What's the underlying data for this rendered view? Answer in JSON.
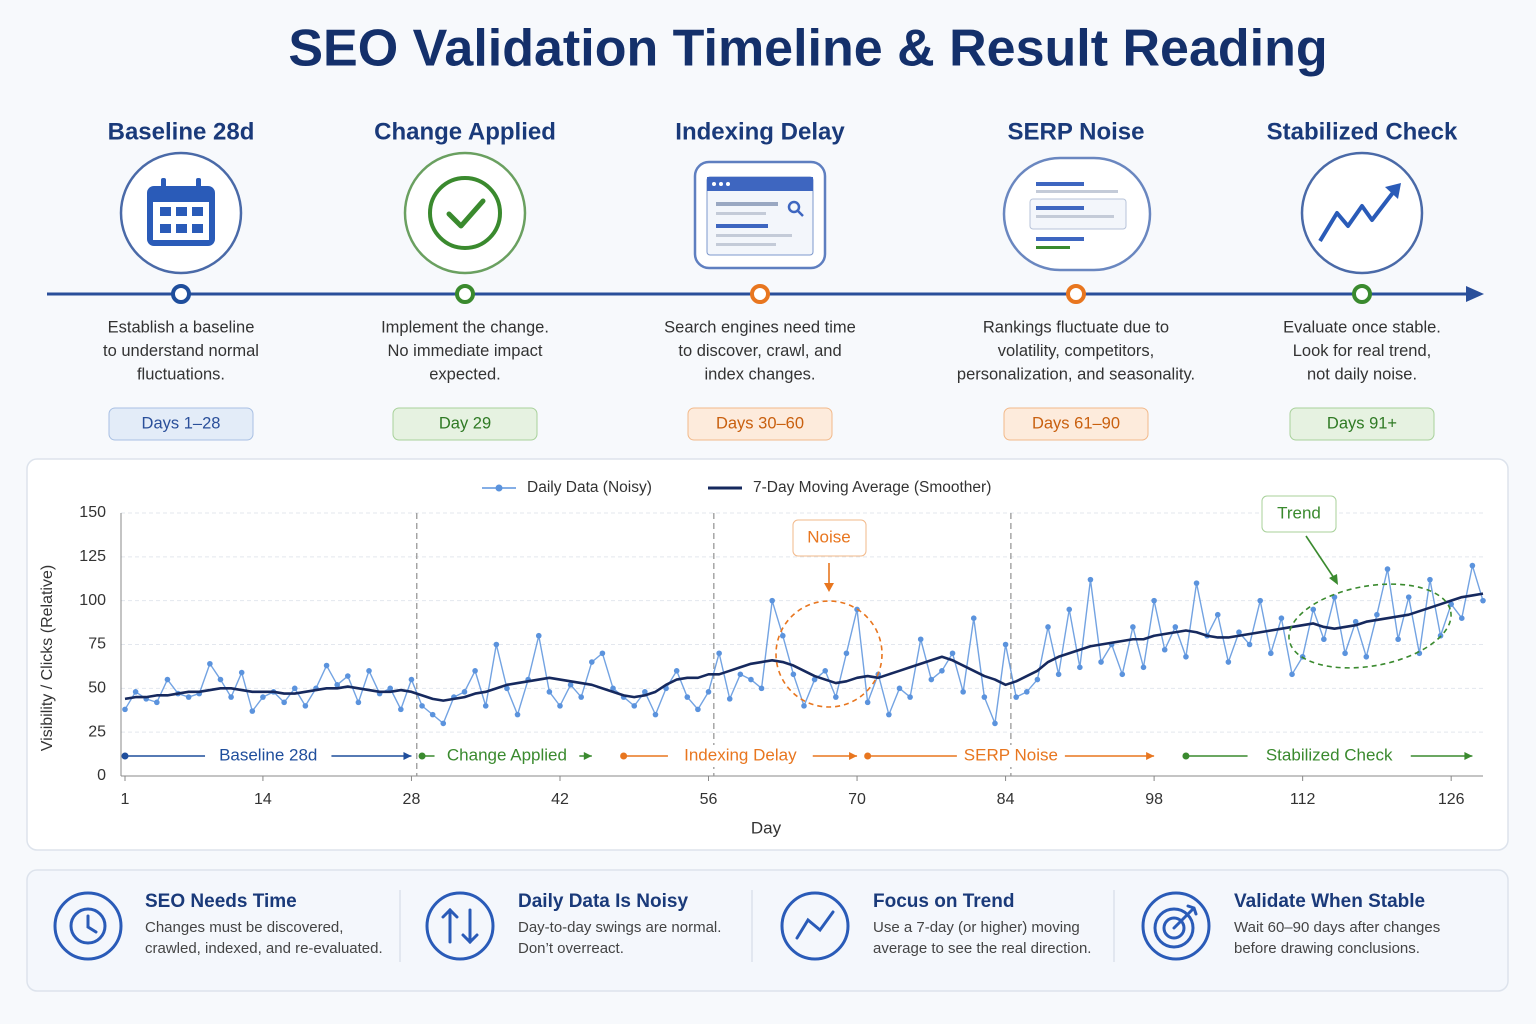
{
  "title": "SEO Validation Timeline & Result Reading",
  "stages": [
    {
      "title": "Baseline 28d",
      "lines": [
        "Establish a baseline",
        "to understand normal",
        "fluctuations."
      ],
      "tag": "Days 1–28"
    },
    {
      "title": "Change Applied",
      "lines": [
        "Implement the change.",
        "No immediate impact",
        "expected."
      ],
      "tag": "Day 29"
    },
    {
      "title": "Indexing Delay",
      "lines": [
        "Search engines need time",
        "to discover, crawl, and",
        "index changes."
      ],
      "tag": "Days 30–60"
    },
    {
      "title": "SERP Noise",
      "lines": [
        "Rankings fluctuate due to",
        "volatility, competitors,",
        "personalization, and seasonality."
      ],
      "tag": "Days 61–90"
    },
    {
      "title": "Stabilized Check",
      "lines": [
        "Evaluate once stable.",
        "Look for real trend,",
        "not daily noise."
      ],
      "tag": "Days 91+"
    }
  ],
  "chart_data": {
    "type": "line",
    "x_label": "Day",
    "y_label": "Visibility / Clicks (Relative)",
    "xlim": [
      1,
      129
    ],
    "xticks": [
      1,
      14,
      28,
      42,
      56,
      70,
      84,
      98,
      112,
      126
    ],
    "ylim": [
      0,
      150
    ],
    "yticks": [
      0,
      25,
      50,
      75,
      100,
      125,
      150
    ],
    "grid": true,
    "legend": "top",
    "x": [
      1,
      2,
      3,
      4,
      5,
      6,
      7,
      8,
      9,
      10,
      11,
      12,
      13,
      14,
      15,
      16,
      17,
      18,
      19,
      20,
      21,
      22,
      23,
      24,
      25,
      26,
      27,
      28,
      29,
      30,
      31,
      32,
      33,
      34,
      35,
      36,
      37,
      38,
      39,
      40,
      41,
      42,
      43,
      44,
      45,
      46,
      47,
      48,
      49,
      50,
      51,
      52,
      53,
      54,
      55,
      56,
      57,
      58,
      59,
      60,
      61,
      62,
      63,
      64,
      65,
      66,
      67,
      68,
      69,
      70,
      71,
      72,
      73,
      74,
      75,
      76,
      77,
      78,
      79,
      80,
      81,
      82,
      83,
      84,
      85,
      86,
      87,
      88,
      89,
      90,
      91,
      92,
      93,
      94,
      95,
      96,
      97,
      98,
      99,
      100,
      101,
      102,
      103,
      104,
      105,
      106,
      107,
      108,
      109,
      110,
      111,
      112,
      113,
      114,
      115,
      116,
      117,
      118,
      119,
      120,
      121,
      122,
      123,
      124,
      125,
      126,
      127,
      128,
      129
    ],
    "series": [
      {
        "name": "Daily Data (Noisy)",
        "color": "#5b93dd",
        "values": [
          38,
          48,
          44,
          42,
          55,
          47,
          45,
          47,
          64,
          55,
          45,
          59,
          37,
          45,
          48,
          42,
          50,
          40,
          50,
          63,
          52,
          57,
          42,
          60,
          47,
          50,
          38,
          55,
          40,
          35,
          30,
          45,
          48,
          60,
          40,
          75,
          50,
          35,
          55,
          80,
          48,
          40,
          52,
          45,
          65,
          70,
          50,
          45,
          40,
          48,
          35,
          50,
          60,
          45,
          38,
          48,
          70,
          44,
          58,
          55,
          50,
          100,
          80,
          58,
          40,
          55,
          60,
          45,
          70,
          95,
          42,
          58,
          35,
          50,
          45,
          78,
          55,
          60,
          70,
          48,
          90,
          45,
          30,
          75,
          45,
          48,
          55,
          85,
          58,
          95,
          62,
          112,
          65,
          75,
          58,
          85,
          62,
          100,
          72,
          85,
          68,
          110,
          80,
          92,
          65,
          82,
          75,
          100,
          70,
          90,
          58,
          68,
          95,
          78,
          102,
          70,
          88,
          68,
          92,
          118,
          78,
          102,
          70,
          112,
          80,
          98,
          90,
          120,
          100
        ]
      },
      {
        "name": "7-Day Moving Average (Smoother)",
        "color": "#16295e",
        "values": [
          44,
          45,
          45,
          46,
          46,
          47,
          48,
          48,
          49,
          50,
          50,
          49,
          48,
          48,
          48,
          47,
          47,
          48,
          49,
          50,
          50,
          51,
          50,
          49,
          48,
          48,
          49,
          48,
          46,
          44,
          43,
          44,
          45,
          47,
          48,
          50,
          52,
          53,
          54,
          55,
          56,
          55,
          54,
          53,
          52,
          50,
          48,
          46,
          45,
          46,
          48,
          52,
          55,
          56,
          56,
          58,
          58,
          60,
          62,
          64,
          65,
          66,
          65,
          63,
          60,
          57,
          55,
          53,
          54,
          56,
          57,
          56,
          58,
          60,
          62,
          64,
          66,
          68,
          66,
          63,
          60,
          57,
          55,
          52,
          54,
          57,
          60,
          65,
          68,
          70,
          72,
          74,
          75,
          76,
          77,
          78,
          78,
          80,
          81,
          82,
          83,
          82,
          80,
          79,
          79,
          80,
          81,
          82,
          83,
          84,
          85,
          86,
          87,
          85,
          84,
          85,
          86,
          88,
          89,
          90,
          91,
          92,
          94,
          96,
          98,
          100,
          102,
          103,
          104
        ]
      }
    ],
    "dividers": [
      28,
      56,
      84
    ],
    "phases": [
      {
        "label": "Baseline 28d",
        "start": 1,
        "end": 28,
        "color": "#1f4e9c"
      },
      {
        "label": "Change Applied",
        "start": 29,
        "end": 45,
        "color": "#3a8a2e"
      },
      {
        "label": "Indexing Delay",
        "start": 48,
        "end": 70,
        "color": "#e8761f"
      },
      {
        "label": "SERP Noise",
        "start": 71,
        "end": 98,
        "color": "#e8761f"
      },
      {
        "label": "Stabilized Check",
        "start": 101,
        "end": 128,
        "color": "#3a8a2e"
      }
    ],
    "annotations": [
      {
        "text": "Noise",
        "color": "#e8761f"
      },
      {
        "text": "Trend",
        "color": "#3a8a2e"
      }
    ]
  },
  "tips": [
    {
      "title": "SEO Needs Time",
      "lines": [
        "Changes must be discovered,",
        "crawled, indexed, and re-evaluated."
      ]
    },
    {
      "title": "Daily Data Is Noisy",
      "lines": [
        "Day-to-day swings are normal.",
        "Don’t overreact."
      ]
    },
    {
      "title": "Focus on Trend",
      "lines": [
        "Use a 7-day (or higher) moving",
        "average to see the real direction."
      ]
    },
    {
      "title": "Validate When Stable",
      "lines": [
        "Wait 60–90 days after changes",
        "before drawing conclusions."
      ]
    }
  ]
}
